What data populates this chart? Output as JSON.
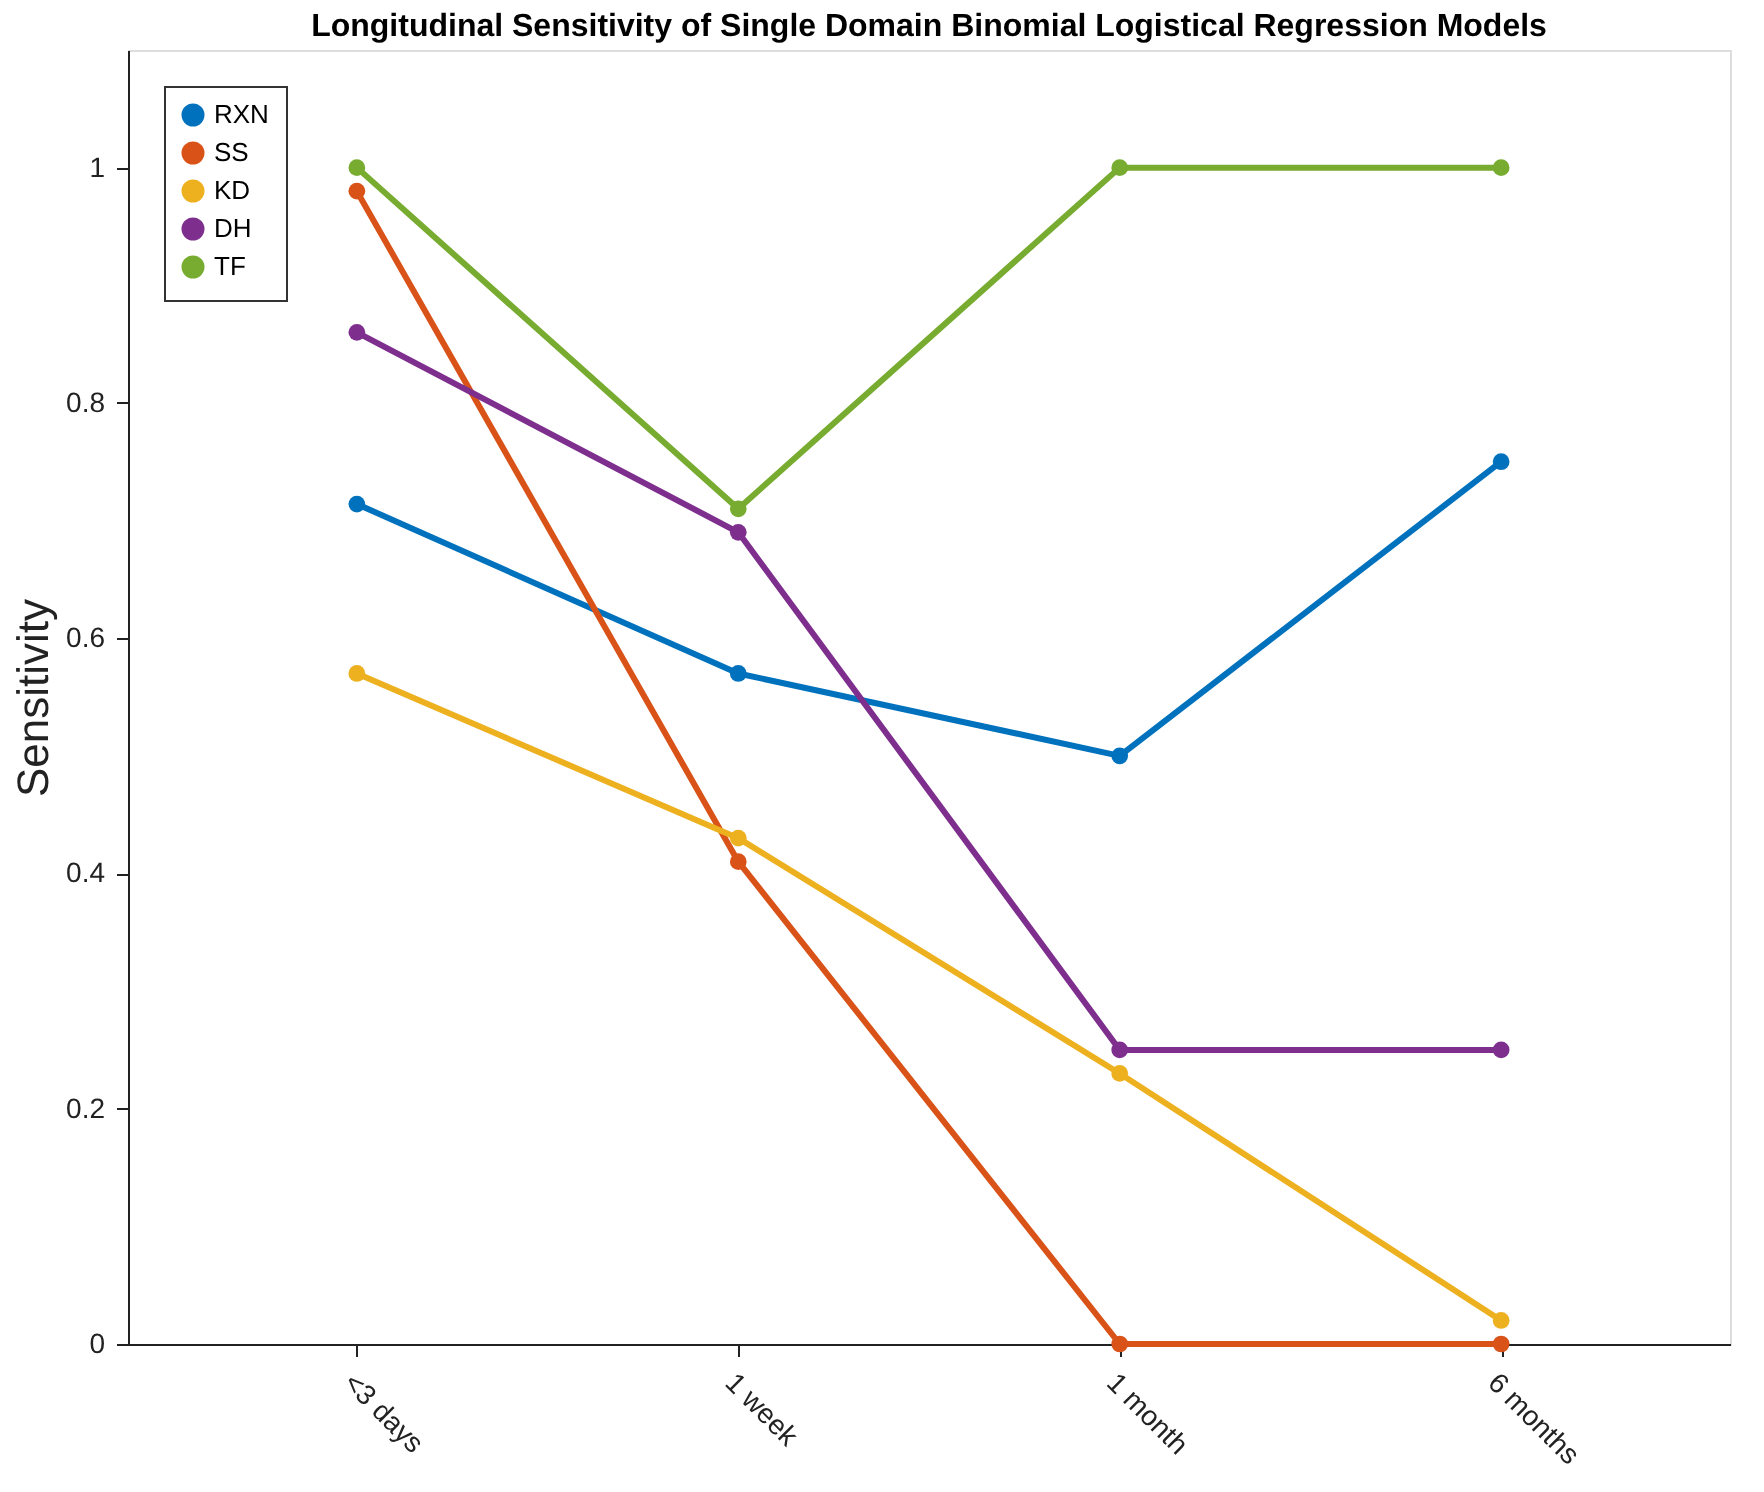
{
  "chart_data": {
    "type": "line",
    "title": "Longitudinal Sensitivity of Single Domain Binomial Logistical Regression Models",
    "ylabel": "Sensitivity",
    "categories": [
      "<3 days",
      "1 week",
      "1 month",
      "6 months"
    ],
    "ylim": [
      0,
      1.1
    ],
    "yticks": [
      0,
      0.2,
      0.4,
      0.6,
      0.8,
      1
    ],
    "series": [
      {
        "name": "RXN",
        "color": "#0072bd",
        "values": [
          0.714,
          0.57,
          0.5,
          0.75
        ]
      },
      {
        "name": "SS",
        "color": "#d95319",
        "values": [
          0.98,
          0.41,
          0,
          0
        ]
      },
      {
        "name": "KD",
        "color": "#edb120",
        "values": [
          0.57,
          0.43,
          0.23,
          0.02
        ]
      },
      {
        "name": "DH",
        "color": "#7e2f8e",
        "values": [
          0.86,
          0.69,
          0.25,
          0.25
        ]
      },
      {
        "name": "TF",
        "color": "#77ac30",
        "values": [
          1,
          0.71,
          1,
          1
        ]
      }
    ],
    "legend": "top left",
    "grid": false,
    "marker": "circle",
    "line_style": "solid"
  }
}
